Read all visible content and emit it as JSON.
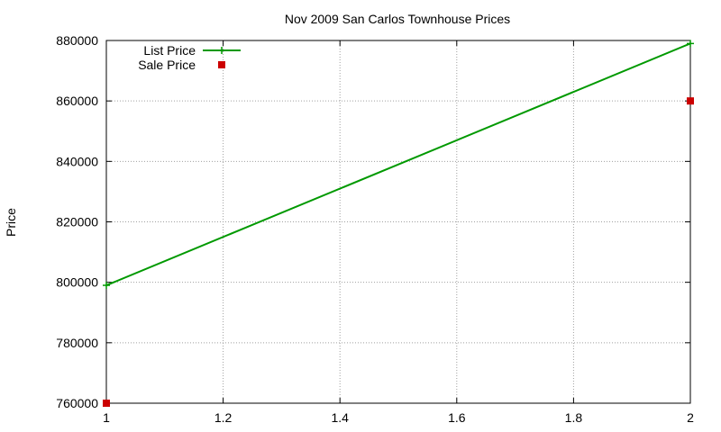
{
  "chart_data": {
    "type": "line",
    "title": "Nov 2009 San Carlos Townhouse Prices",
    "xlabel": "",
    "ylabel": "Price",
    "xlim": [
      1,
      2
    ],
    "ylim": [
      760000,
      880000
    ],
    "x_ticks": [
      1,
      1.2,
      1.4,
      1.6,
      1.8,
      2
    ],
    "x_tick_labels": [
      "1",
      "1.2",
      "1.4",
      "1.6",
      "1.8",
      "2"
    ],
    "y_ticks": [
      760000,
      780000,
      800000,
      820000,
      840000,
      860000,
      880000
    ],
    "y_tick_labels": [
      "760000",
      "780000",
      "800000",
      "820000",
      "840000",
      "860000",
      "880000"
    ],
    "grid": true,
    "legend_position": "top-left",
    "series": [
      {
        "name": "List Price",
        "style": "linespoints",
        "color": "#009900",
        "marker": "plus",
        "x": [
          1,
          2
        ],
        "y": [
          799000,
          879000
        ]
      },
      {
        "name": "Sale Price",
        "style": "points",
        "color": "#cc0000",
        "marker": "square",
        "x": [
          1,
          2
        ],
        "y": [
          760000,
          860000
        ]
      }
    ]
  }
}
